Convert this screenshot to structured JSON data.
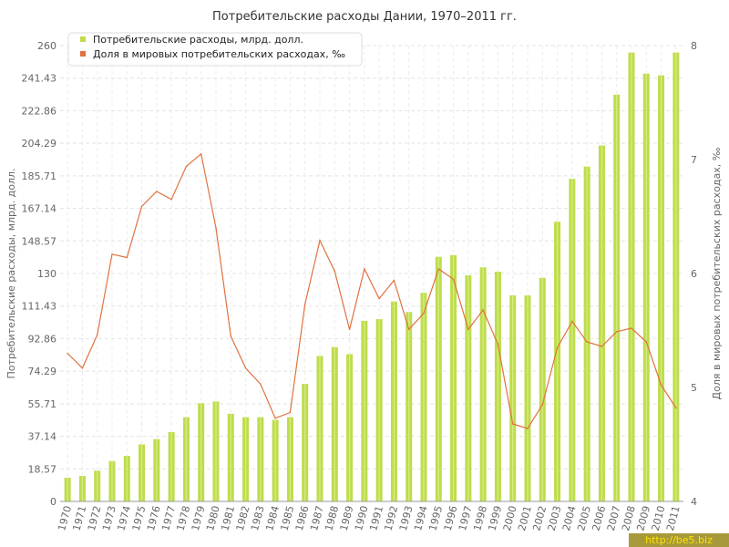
{
  "chart_data": {
    "type": "bar+line",
    "title": "Потребительские расходы Дании, 1970–2011 гг.",
    "ylabel_left": "Потребительские расходы, млрд. долл.",
    "ylabel_right": "Доля в мировых потребительских расходах, ‰",
    "left_ticks": [
      "0",
      "18.57",
      "37.14",
      "55.71",
      "74.29",
      "92.86",
      "111.43",
      "130",
      "148.57",
      "167.14",
      "185.71",
      "204.29",
      "222.86",
      "241.43",
      "260"
    ],
    "right_ticks": [
      "4",
      "5",
      "6",
      "7",
      "8"
    ],
    "ylim_left": [
      0,
      260
    ],
    "ylim_right": [
      4,
      8
    ],
    "categories": [
      "1970",
      "1971",
      "1972",
      "1973",
      "1974",
      "1975",
      "1976",
      "1977",
      "1978",
      "1979",
      "1980",
      "1981",
      "1982",
      "1983",
      "1984",
      "1985",
      "1986",
      "1987",
      "1988",
      "1989",
      "1990",
      "1991",
      "1992",
      "1993",
      "1994",
      "1995",
      "1996",
      "1997",
      "1998",
      "1999",
      "2000",
      "2001",
      "2002",
      "2003",
      "2004",
      "2005",
      "2006",
      "2007",
      "2008",
      "2009",
      "2010",
      "2011"
    ],
    "series": [
      {
        "name": "Потребительские расходы, млрд. долл.",
        "type": "bar",
        "color": "#bedd4b",
        "values": [
          13.5,
          14.5,
          17.5,
          23,
          26,
          32.5,
          35.5,
          39.5,
          48,
          56,
          57,
          50,
          48,
          48,
          46.5,
          48,
          67,
          83,
          88,
          84,
          103,
          104,
          114,
          108,
          119,
          139.5,
          140.5,
          129,
          133.5,
          131,
          117.5,
          117.5,
          127.5,
          159.5,
          184,
          191,
          203,
          232,
          256,
          244,
          243,
          256
        ]
      },
      {
        "name": "Доля в мировых потребительских расходах, ‰",
        "type": "line",
        "color": "#e0723f",
        "values": [
          5.3,
          5.17,
          5.46,
          6.17,
          6.14,
          6.59,
          6.72,
          6.65,
          6.94,
          7.05,
          6.4,
          5.45,
          5.17,
          5.03,
          4.73,
          4.78,
          5.73,
          6.29,
          6.02,
          5.51,
          6.04,
          5.78,
          5.94,
          5.51,
          5.65,
          6.04,
          5.95,
          5.51,
          5.68,
          5.38,
          4.68,
          4.64,
          4.85,
          5.35,
          5.58,
          5.4,
          5.36,
          5.49,
          5.52,
          5.4,
          5.02,
          4.82
        ]
      }
    ],
    "legend_placement": "top-left",
    "grid": true
  },
  "watermark": "http://be5.biz",
  "colors": {
    "bar": "#bedd4b",
    "line": "#e0723f",
    "watermark_bg": "#a89a3a"
  }
}
